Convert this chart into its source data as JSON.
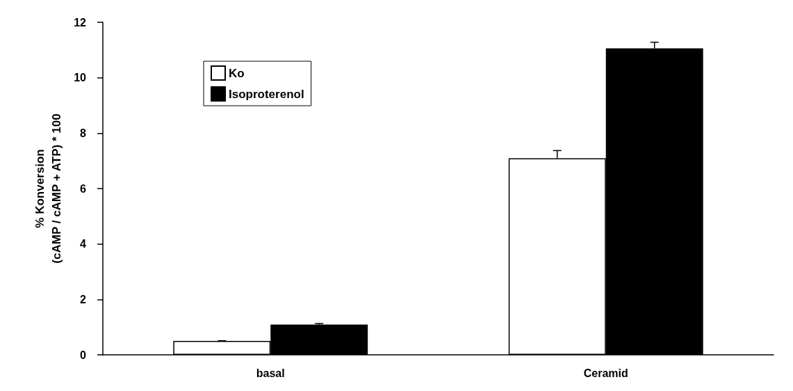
{
  "chart_data": {
    "type": "bar",
    "ylabel": "% Konversion\n(cAMP / cAMP + ATP) * 100",
    "categories": [
      "basal",
      "Ceramid"
    ],
    "series": [
      {
        "name": "Ko",
        "color": "#ffffff",
        "values": [
          0.5,
          7.09
        ],
        "errors": [
          [
            0.5,
            0.51
          ],
          [
            7.09,
            7.37
          ]
        ]
      },
      {
        "name": "Isoproterenol",
        "color": "#000000",
        "values": [
          1.09,
          11.06
        ],
        "errors": [
          [
            1.09,
            1.13
          ],
          [
            11.06,
            11.28
          ]
        ]
      }
    ],
    "ylim": [
      0,
      12
    ],
    "yticks": [
      0,
      2,
      4,
      6,
      8,
      10,
      12
    ],
    "grid": false,
    "legend": "top left"
  }
}
